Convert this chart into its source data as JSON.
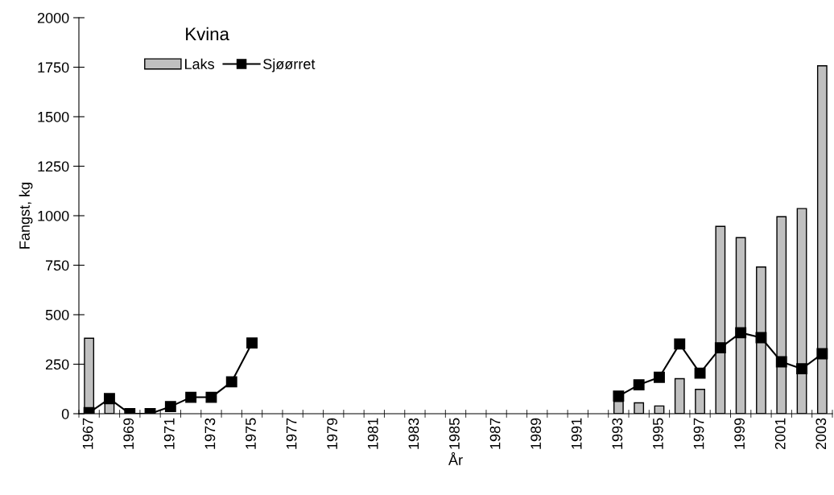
{
  "chart_data": {
    "type": "bar",
    "title": "Kvina",
    "xlabel": "År",
    "ylabel": "Fangst, kg",
    "categories": [
      "1967",
      null,
      "1969",
      null,
      "1971",
      null,
      "1973",
      null,
      "1975",
      null,
      "1977",
      null,
      "1979",
      null,
      "1981",
      null,
      "1983",
      null,
      "1985",
      null,
      "1987",
      null,
      "1989",
      null,
      "1991",
      null,
      "1993",
      null,
      "1995",
      null,
      "1997",
      null,
      "1999",
      null,
      "2001",
      null,
      "2003"
    ],
    "series": [
      {
        "name": "Laks",
        "color": "#c0c0c0",
        "values": [
          381,
          52,
          null,
          null,
          null,
          null,
          null,
          null,
          null,
          null,
          null,
          null,
          null,
          null,
          null,
          null,
          null,
          null,
          null,
          null,
          null,
          null,
          null,
          null,
          null,
          null,
          62,
          55,
          39,
          177,
          123,
          946,
          889,
          741,
          995,
          1036,
          1757
        ]
      },
      {
        "name": "Sjøørret",
        "type": "line",
        "color": "#000000",
        "marker": "square",
        "values": [
          5,
          76,
          0,
          0,
          36,
          83,
          83,
          161,
          357,
          null,
          null,
          null,
          null,
          null,
          null,
          null,
          null,
          null,
          null,
          null,
          null,
          null,
          null,
          null,
          null,
          null,
          89,
          146,
          184,
          352,
          205,
          333,
          409,
          384,
          262,
          227,
          303
        ]
      }
    ],
    "ylim": [
      0,
      2000
    ],
    "yticks": [
      0,
      250,
      500,
      750,
      1000,
      1250,
      1500,
      1750,
      2000
    ],
    "grid": false,
    "legend": "top left"
  }
}
